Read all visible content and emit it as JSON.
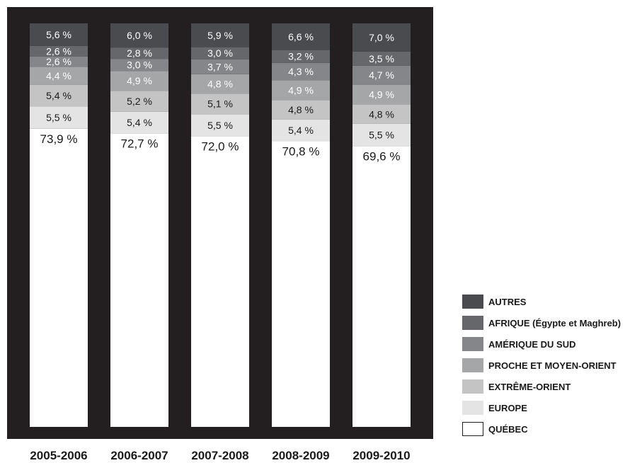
{
  "chart_data": {
    "type": "bar",
    "stacked": true,
    "categories": [
      "2005-2006",
      "2006-2007",
      "2007-2008",
      "2008-2009",
      "2009-2010"
    ],
    "series": [
      {
        "name": "QUÉBEC",
        "color": "#ffffff",
        "values": [
          73.9,
          72.7,
          72.0,
          70.8,
          69.6
        ],
        "labels": [
          "73,9 %",
          "72,7 %",
          "72,0 %",
          "70,8 %",
          "69,6 %"
        ]
      },
      {
        "name": "EUROPE",
        "color": "#e4e4e5",
        "values": [
          5.5,
          5.4,
          5.5,
          5.4,
          5.5
        ],
        "labels": [
          "5,5 %",
          "5,4 %",
          "5,5 %",
          "5,4 %",
          "5,5 %"
        ]
      },
      {
        "name": "EXTRÊME-ORIENT",
        "color": "#c4c4c5",
        "values": [
          5.4,
          5.2,
          5.1,
          4.8,
          4.8
        ],
        "labels": [
          "5,4 %",
          "5,2 %",
          "5,1 %",
          "4,8 %",
          "4,8 %"
        ]
      },
      {
        "name": "PROCHE ET MOYEN-ORIENT",
        "color": "#a5a6a8",
        "values": [
          4.4,
          4.9,
          4.8,
          4.9,
          4.9
        ],
        "labels": [
          "4,4 %",
          "4,9 %",
          "4,8 %",
          "4,9 %",
          "4,9 %"
        ]
      },
      {
        "name": "AMÉRIQUE DU SUD",
        "color": "#858689",
        "values": [
          2.6,
          3.0,
          3.7,
          4.3,
          4.7
        ],
        "labels": [
          "2,6 %",
          "3,0 %",
          "3,7 %",
          "4,3 %",
          "4,7 %"
        ]
      },
      {
        "name": "AFRIQUE (Égypte et Maghreb)",
        "color": "#66676a",
        "values": [
          2.6,
          2.8,
          3.0,
          3.2,
          3.5
        ],
        "labels": [
          "2,6 %",
          "2,8 %",
          "3,0 %",
          "3,2 %",
          "3,5 %"
        ]
      },
      {
        "name": "AUTRES",
        "color": "#4a4b4e",
        "values": [
          5.6,
          6.0,
          5.9,
          6.6,
          7.0
        ],
        "labels": [
          "5,6 %",
          "6,0 %",
          "5,9 %",
          "6,6 %",
          "7,0 %"
        ]
      }
    ],
    "legend": {
      "position": "bottom-right",
      "entries": [
        "AUTRES",
        "AFRIQUE (Égypte et Maghreb)",
        "AMÉRIQUE DU SUD",
        "PROCHE ET MOYEN-ORIENT",
        "EXTRÊME-ORIENT",
        "EUROPE",
        "QUÉBEC"
      ]
    },
    "ylim": [
      0,
      100
    ],
    "grid": false,
    "background_color": "#231f20",
    "title": "",
    "xlabel": "",
    "ylabel": ""
  }
}
